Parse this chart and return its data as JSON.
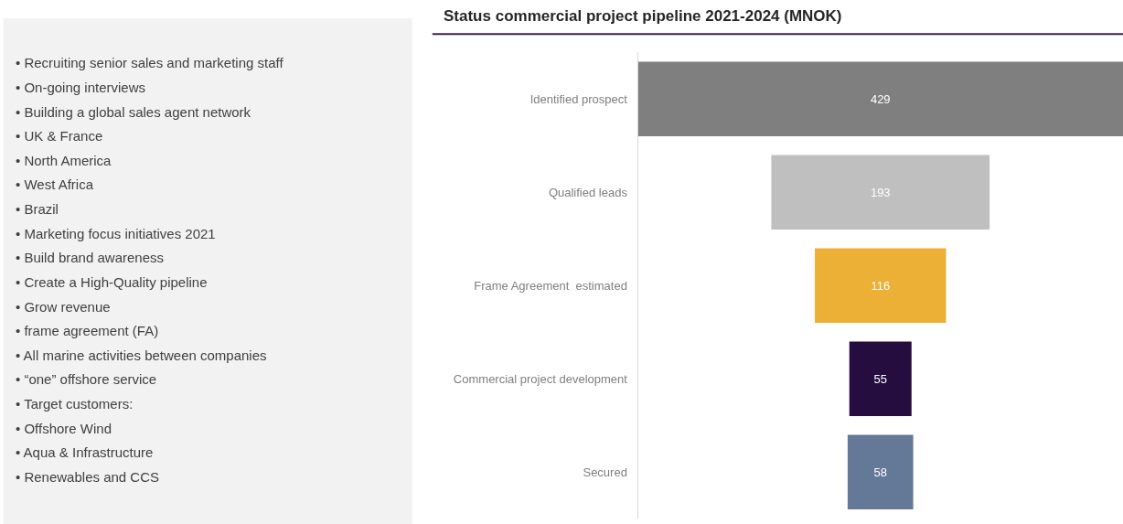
{
  "chart_data": [
    {
      "type": "other",
      "annotations": [
        "• Recruiting senior sales and marketing staff",
        "• On-going interviews",
        "• Building a global sales agent network",
        "• UK & France",
        "• North America",
        "• West Africa",
        "• Brazil",
        "• Marketing focus initiatives 2021",
        "• Build brand awareness",
        "• Create a High-Quality pipeline",
        "• Grow revenue",
        "• frame agreement (FA)",
        "• All marine activities between companies",
        "• “one” offshore service",
        "• Target customers:",
        "• Offshore Wind",
        "• Aqua & Infrastructure",
        "• Renewables and CCS"
      ]
    },
    {
      "type": "other",
      "title": "Status commercial project pipeline 2021-2024 (MNOK)",
      "categories": [
        "Identified prospect",
        "Qualified leads",
        "Frame Agreement  estimated",
        "Commercial project development",
        "Secured"
      ],
      "values": [
        429,
        193,
        116,
        55,
        58
      ],
      "colors": [
        "#7f7f7f",
        "#bfbfbf",
        "#ebb035",
        "#250d3f",
        "#647898"
      ],
      "data_labels": true
    }
  ]
}
